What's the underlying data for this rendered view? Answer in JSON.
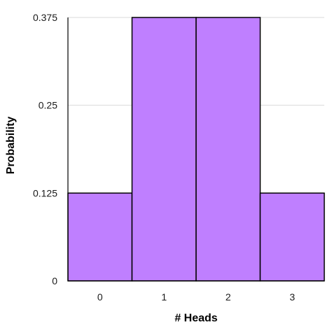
{
  "chart_data": {
    "type": "bar",
    "categories": [
      "0",
      "1",
      "2",
      "3"
    ],
    "values": [
      0.125,
      0.375,
      0.375,
      0.125
    ],
    "title": "",
    "xlabel": "# Heads",
    "ylabel": "Probability",
    "ylim": [
      0,
      0.375
    ],
    "yticks": [
      0,
      0.125,
      0.25,
      0.375
    ],
    "ytick_labels": [
      "0",
      "0.125",
      "0.25",
      "0.375"
    ],
    "grid": true,
    "legend": "none",
    "bar_color": "#bf7fff",
    "bar_edge_color": "#000000"
  }
}
